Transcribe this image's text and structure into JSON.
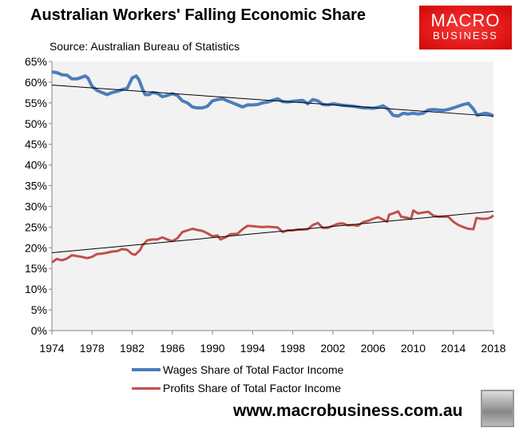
{
  "chart_data": {
    "type": "line",
    "title": "Australian Workers' Falling Economic Share",
    "subtitle": "Source: Australian Bureau of Statistics",
    "xlabel": "",
    "ylabel": "",
    "xlim": [
      1974,
      2018
    ],
    "ylim": [
      0,
      65
    ],
    "x_ticks": [
      "1974",
      "1978",
      "1982",
      "1986",
      "1990",
      "1994",
      "1998",
      "2002",
      "2006",
      "2010",
      "2014",
      "2018"
    ],
    "y_ticks": [
      "0%",
      "5%",
      "10%",
      "15%",
      "20%",
      "25%",
      "30%",
      "35%",
      "40%",
      "45%",
      "50%",
      "55%",
      "60%",
      "65%"
    ],
    "grid": false,
    "legend_position": "bottom",
    "series": [
      {
        "name": "Wages Share of Total Factor Income",
        "color": "#4a7ebb",
        "x": [
          1974,
          1974.5,
          1975,
          1975.5,
          1976,
          1976.5,
          1977,
          1977.3,
          1977.6,
          1978,
          1978.5,
          1979,
          1979.5,
          1980,
          1980.5,
          1981,
          1981.5,
          1982,
          1982.4,
          1982.7,
          1983,
          1983.3,
          1983.7,
          1984,
          1984.5,
          1985,
          1985.5,
          1986,
          1986.5,
          1987,
          1987.5,
          1988,
          1988.5,
          1989,
          1989.5,
          1990,
          1990.5,
          1991,
          1991.5,
          1992,
          1992.5,
          1993,
          1993.5,
          1994,
          1994.5,
          1995,
          1995.5,
          1996,
          1996.5,
          1997,
          1997.5,
          1998,
          1998.5,
          1999,
          1999.5,
          2000,
          2000.5,
          2001,
          2001.5,
          2002,
          2002.5,
          2003,
          2003.5,
          2004,
          2004.5,
          2005,
          2005.5,
          2006,
          2006.5,
          2007,
          2007.5,
          2008,
          2008.5,
          2009,
          2009.5,
          2010,
          2010.5,
          2011,
          2011.5,
          2012,
          2012.5,
          2013,
          2013.5,
          2014,
          2014.5,
          2015,
          2015.5,
          2016,
          2016.4,
          2016.8,
          2017.2,
          2017.6,
          2018
        ],
        "values": [
          62.5,
          62.3,
          61.8,
          61.7,
          60.8,
          60.8,
          61.2,
          61.5,
          61.0,
          59.0,
          58.0,
          57.5,
          57.0,
          57.5,
          57.8,
          58.2,
          58.5,
          61.0,
          61.5,
          60.5,
          58.5,
          57.0,
          57.0,
          57.5,
          57.3,
          56.5,
          56.8,
          57.2,
          56.8,
          55.5,
          55.0,
          54.0,
          53.8,
          53.8,
          54.2,
          55.5,
          55.8,
          56.0,
          55.5,
          55.0,
          54.5,
          54.0,
          54.5,
          54.5,
          54.6,
          55.0,
          55.2,
          55.6,
          56.0,
          55.3,
          55.2,
          55.4,
          55.5,
          55.6,
          54.8,
          55.8,
          55.5,
          54.6,
          54.5,
          54.8,
          54.6,
          54.4,
          54.3,
          54.2,
          54.0,
          53.8,
          53.8,
          53.7,
          53.9,
          54.3,
          53.5,
          52.0,
          51.8,
          52.5,
          52.3,
          52.5,
          52.3,
          52.5,
          53.3,
          53.4,
          53.3,
          53.2,
          53.4,
          53.8,
          54.2,
          54.6,
          54.9,
          53.5,
          52.0,
          52.3,
          52.5,
          52.3,
          51.8
        ],
        "trend": [
          59.3,
          51.8
        ]
      },
      {
        "name": "Profits Share of Total Factor Income",
        "color": "#c0504d",
        "x": [
          1974,
          1974.5,
          1975,
          1975.5,
          1976,
          1976.5,
          1977,
          1977.5,
          1978,
          1978.5,
          1979,
          1979.5,
          1980,
          1980.5,
          1981,
          1981.5,
          1982,
          1982.3,
          1982.8,
          1983,
          1983.5,
          1984,
          1984.5,
          1985,
          1985.5,
          1986,
          1986.5,
          1987,
          1987.5,
          1988,
          1988.5,
          1989,
          1989.5,
          1990,
          1990.5,
          1990.8,
          1991.3,
          1991.8,
          1992.5,
          1993,
          1993.5,
          1994,
          1994.5,
          1995,
          1995.5,
          1996,
          1996.5,
          1997,
          1997.5,
          1998,
          1998.5,
          1999,
          1999.5,
          2000,
          2000.5,
          2001,
          2001.5,
          2002,
          2002.5,
          2003,
          2003.5,
          2004,
          2004.5,
          2005,
          2005.5,
          2006,
          2006.5,
          2007,
          2007.4,
          2007.6,
          2008,
          2008.5,
          2008.8,
          2009.3,
          2009.8,
          2010,
          2010.5,
          2011,
          2011.5,
          2012,
          2012.5,
          2013,
          2013.5,
          2014,
          2014.5,
          2015,
          2015.5,
          2016,
          2016.3,
          2016.8,
          2017.3,
          2017.7,
          2018
        ],
        "values": [
          16.5,
          17.3,
          17.0,
          17.4,
          18.2,
          18.0,
          17.8,
          17.5,
          17.8,
          18.5,
          18.6,
          18.8,
          19.1,
          19.2,
          19.7,
          19.5,
          18.5,
          18.3,
          19.5,
          20.5,
          21.8,
          22.0,
          22.0,
          22.5,
          22.0,
          21.6,
          22.3,
          23.8,
          24.2,
          24.6,
          24.3,
          24.1,
          23.5,
          22.8,
          23.0,
          22.0,
          22.5,
          23.3,
          23.4,
          24.5,
          25.3,
          25.2,
          25.1,
          25.0,
          25.1,
          25.0,
          24.9,
          23.8,
          24.2,
          24.2,
          24.4,
          24.4,
          24.5,
          25.5,
          26.0,
          24.8,
          24.8,
          25.3,
          25.8,
          25.9,
          25.4,
          25.5,
          25.3,
          26.2,
          26.5,
          27.0,
          27.4,
          26.8,
          26.3,
          28.0,
          28.3,
          28.8,
          27.5,
          27.3,
          27.0,
          29.0,
          28.3,
          28.5,
          28.7,
          27.8,
          27.5,
          27.5,
          27.5,
          26.3,
          25.5,
          25.0,
          24.6,
          24.5,
          27.2,
          27.0,
          27.0,
          27.3,
          27.8
        ],
        "trend": [
          18.8,
          28.8
        ]
      }
    ]
  },
  "logo": {
    "line1": "MACRO",
    "line2": "BUSINESS"
  },
  "footer": {
    "url": "www.macrobusiness.com.au"
  }
}
